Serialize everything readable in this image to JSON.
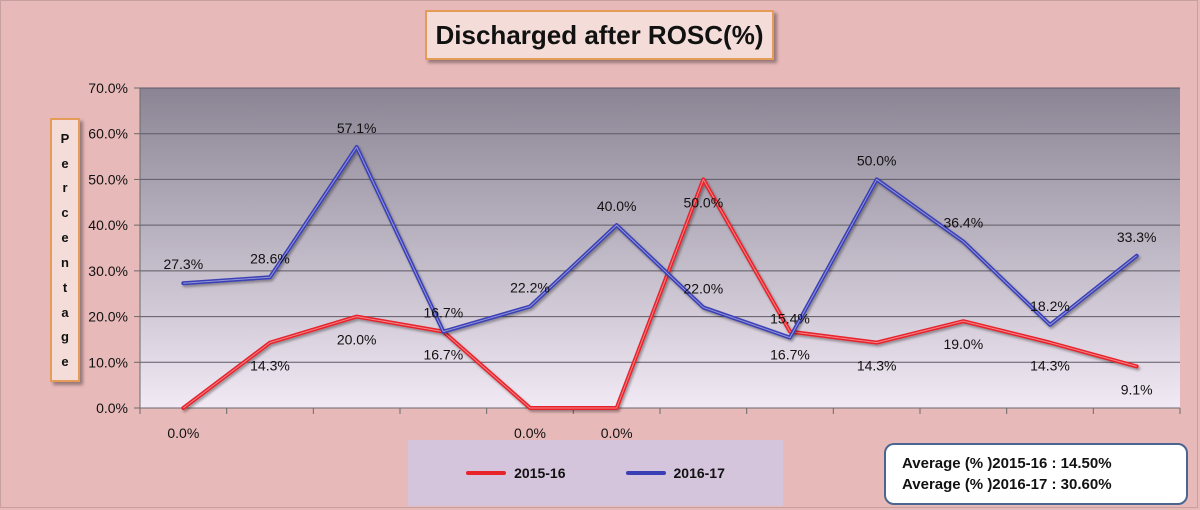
{
  "chart_data": {
    "type": "line",
    "title": "Discharged after ROSC(%)",
    "ylabel": "Percentage",
    "ylim": [
      0,
      70
    ],
    "yticks": [
      "0.0%",
      "10.0%",
      "20.0%",
      "30.0%",
      "40.0%",
      "50.0%",
      "60.0%",
      "70.0%"
    ],
    "point_count": 12,
    "grid": true,
    "legend_position": "bottom",
    "series": [
      {
        "name": "2015-16",
        "color": "#e8242a",
        "values": [
          0.0,
          14.3,
          20.0,
          16.7,
          0.0,
          0.0,
          50.0,
          16.7,
          14.3,
          19.0,
          14.3,
          9.1
        ],
        "labels": [
          "0.0%",
          "14.3%",
          "20.0%",
          "16.7%",
          "0.0%",
          "0.0%",
          "50.0%",
          "16.7%",
          "14.3%",
          "19.0%",
          "14.3%",
          "9.1%"
        ]
      },
      {
        "name": "2016-17",
        "color": "#3b3fb6",
        "values": [
          27.3,
          28.6,
          57.1,
          16.7,
          22.2,
          40.0,
          22.0,
          15.4,
          50.0,
          36.4,
          18.2,
          33.3
        ],
        "labels": [
          "27.3%",
          "28.6%",
          "57.1%",
          "16.7%",
          "22.2%",
          "40.0%",
          "22.0%",
          "15.4%",
          "50.0%",
          "36.4%",
          "18.2%",
          "33.3%"
        ]
      }
    ]
  },
  "averages": [
    "Average (% )2015-16 :  14.50%",
    "Average (% )2016-17  :  30.60%"
  ]
}
